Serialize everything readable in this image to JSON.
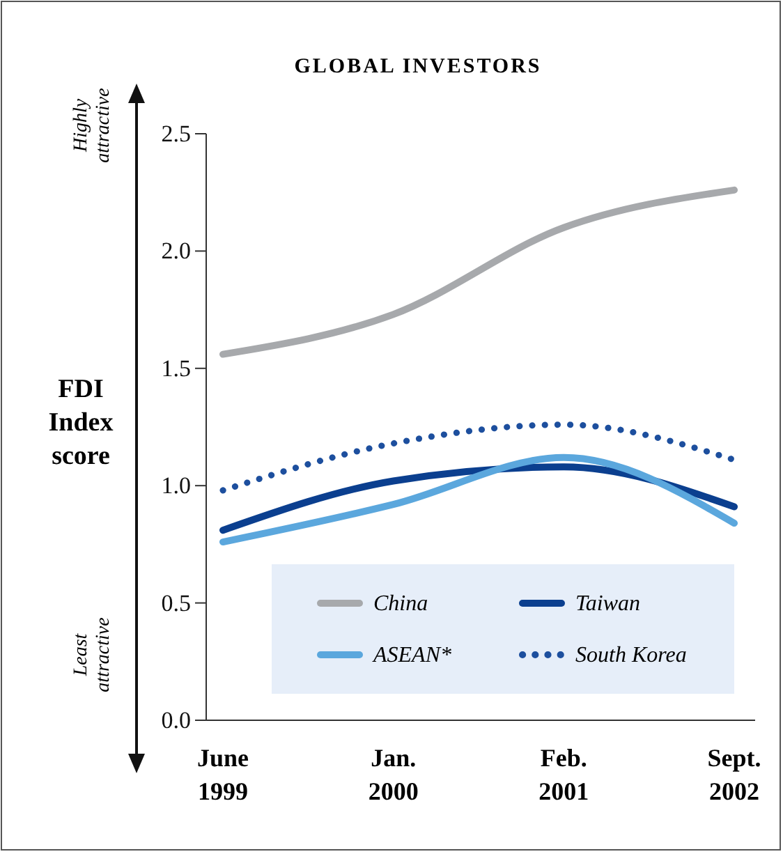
{
  "chart_data": {
    "type": "line",
    "title": "GLOBAL INVESTORS",
    "ylabel": "FDI Index score",
    "annotations": [
      "Highly attractive",
      "Least attractive"
    ],
    "categories": [
      "June 1999",
      "Jan. 2000",
      "Feb. 2001",
      "Sept. 2002"
    ],
    "ylim": [
      0,
      2.5
    ],
    "yticks": [
      {
        "value": 0,
        "label": "0.0"
      },
      {
        "value": 0.5,
        "label": "0.5"
      },
      {
        "value": 1,
        "label": "1.0"
      },
      {
        "value": 1.5,
        "label": "1.5"
      },
      {
        "value": 2,
        "label": "2.0"
      },
      {
        "value": 2.5,
        "label": "2.5"
      }
    ],
    "grid": false,
    "legend": "bottom right",
    "series": [
      {
        "name": "China",
        "color": "#a7a9ac",
        "line_style": "solid",
        "values": [
          1.56,
          1.73,
          2.1,
          2.26
        ]
      },
      {
        "name": "Taiwan",
        "color": "#0b3f8f",
        "line_style": "solid",
        "values": [
          0.81,
          1.02,
          1.08,
          0.91
        ]
      },
      {
        "name": "ASEAN*",
        "color": "#5ba7dd",
        "line_style": "solid",
        "values": [
          0.76,
          0.92,
          1.12,
          0.84
        ]
      },
      {
        "name": "South Korea",
        "color": "#1d4f9e",
        "line_style": "dotted",
        "values": [
          0.98,
          1.18,
          1.26,
          1.11
        ]
      }
    ]
  }
}
